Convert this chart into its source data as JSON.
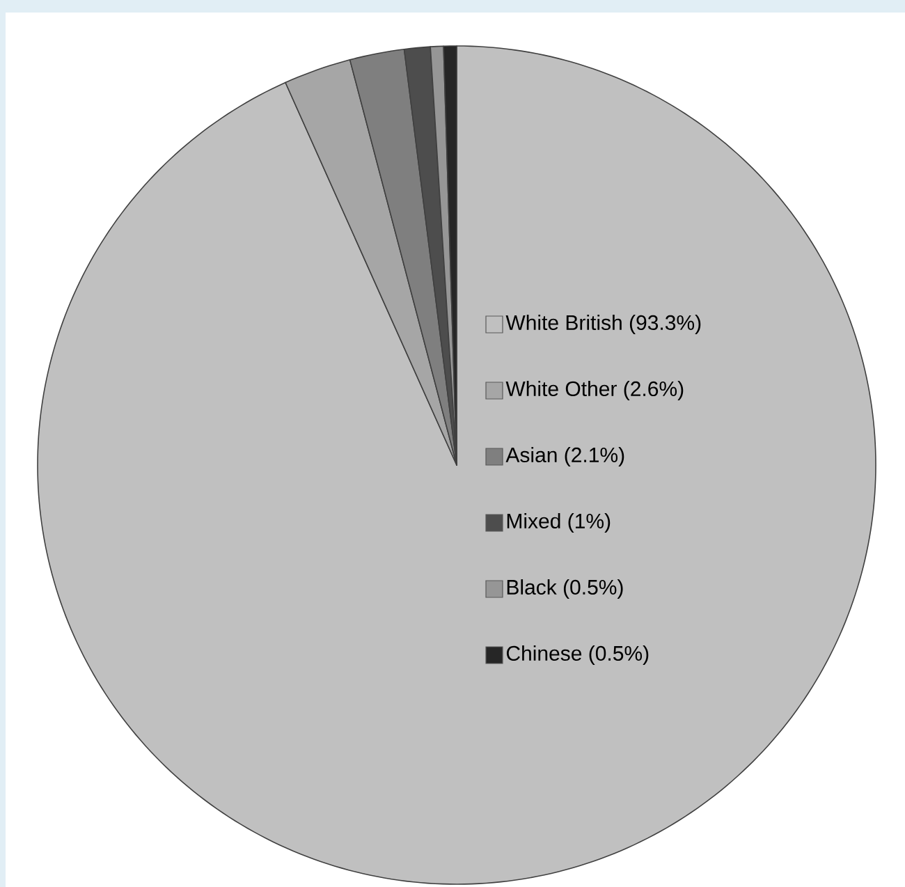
{
  "chart_data": {
    "type": "pie",
    "categories": [
      "White British (93.3%)",
      "White Other (2.6%)",
      "Asian (2.1%)",
      "Mixed (1%)",
      "Black (0.5%)",
      "Chinese (0.5%)"
    ],
    "values": [
      93.3,
      2.6,
      2.1,
      1,
      0.5,
      0.5
    ],
    "colors": [
      "#c0c0c0",
      "#a6a6a6",
      "#7f7f7f",
      "#4d4d4d",
      "#969696",
      "#262626"
    ],
    "legend": "right"
  }
}
